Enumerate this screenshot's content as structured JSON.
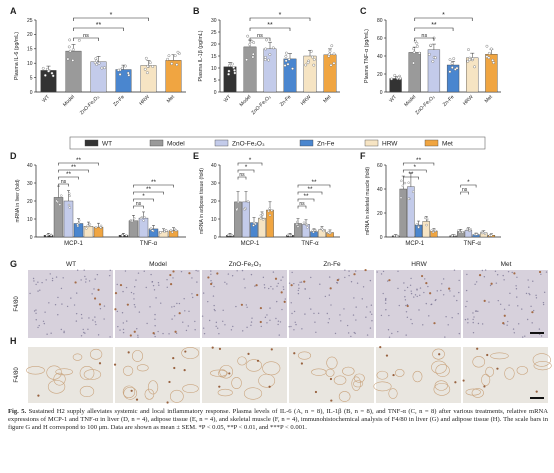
{
  "chart_data": [
    {
      "type": "bar",
      "panel": "A",
      "ylabel": "Plasma IL-6 (pg/mL)",
      "ylim": [
        0,
        25
      ],
      "yticks": [
        "0",
        "5",
        "10",
        "15",
        "20",
        "25"
      ],
      "categories": [
        "WT",
        "Model",
        "ZnO-Fe2O3",
        "Zn-Fe",
        "HRW",
        "Met"
      ],
      "values": [
        7.5,
        14.2,
        10.5,
        7.8,
        9.2,
        11.0
      ],
      "sig": [
        {
          "from": 1,
          "to": 4,
          "label": "*"
        },
        {
          "from": 1,
          "to": 3,
          "label": "**"
        },
        {
          "from": 1,
          "to": 2,
          "label": "ns"
        }
      ]
    },
    {
      "type": "bar",
      "panel": "B",
      "ylabel": "Plasma IL-1β (pg/mL)",
      "ylim": [
        0,
        30
      ],
      "yticks": [
        "0",
        "5",
        "10",
        "15",
        "20",
        "25",
        "30"
      ],
      "categories": [
        "WT",
        "Model",
        "ZnO-Fe2O3",
        "Zn-Fe",
        "HRW",
        "Met"
      ],
      "values": [
        10.5,
        18.8,
        18.0,
        13.8,
        15.0,
        15.5
      ],
      "sig": [
        {
          "from": 1,
          "to": 4,
          "label": "*"
        },
        {
          "from": 1,
          "to": 3,
          "label": "**"
        },
        {
          "from": 1,
          "to": 2,
          "label": "ns"
        }
      ]
    },
    {
      "type": "bar",
      "panel": "C",
      "ylabel": "Plasma TNF-α (pg/mL)",
      "ylim": [
        0,
        80
      ],
      "yticks": [
        "0",
        "20",
        "40",
        "60",
        "80"
      ],
      "categories": [
        "WT",
        "Model",
        "ZnO-Fe2O3",
        "Zn-Fe",
        "HRW",
        "Met"
      ],
      "values": [
        15.0,
        44.0,
        47.0,
        30.0,
        38.0,
        42.0
      ],
      "sig": [
        {
          "from": 1,
          "to": 4,
          "label": "*"
        },
        {
          "from": 1,
          "to": 3,
          "label": "**"
        },
        {
          "from": 1,
          "to": 2,
          "label": "ns"
        }
      ]
    },
    {
      "type": "grouped_bar",
      "panel": "D",
      "ylabel": "mRNA in liver (fold)",
      "ylim": [
        0,
        40
      ],
      "yticks": [
        "0",
        "10",
        "20",
        "30",
        "40"
      ],
      "groups": [
        "MCP-1",
        "TNF-α"
      ],
      "series": [
        {
          "name": "WT",
          "values": [
            1.0,
            1.0
          ]
        },
        {
          "name": "Model",
          "values": [
            22.0,
            9.0
          ]
        },
        {
          "name": "ZnO-Fe2O3",
          "values": [
            20.0,
            10.5
          ]
        },
        {
          "name": "Zn-Fe",
          "values": [
            7.5,
            4.5
          ]
        },
        {
          "name": "HRW",
          "values": [
            6.0,
            3.0
          ]
        },
        {
          "name": "Met",
          "values": [
            5.5,
            3.5
          ]
        }
      ],
      "sig": [
        {
          "group": 0,
          "from": 1,
          "to": 5,
          "label": "**"
        },
        {
          "group": 0,
          "from": 1,
          "to": 4,
          "label": "**"
        },
        {
          "group": 0,
          "from": 1,
          "to": 3,
          "label": "**"
        },
        {
          "group": 0,
          "from": 1,
          "to": 2,
          "label": "ns"
        },
        {
          "group": 1,
          "from": 1,
          "to": 5,
          "label": "**"
        },
        {
          "group": 1,
          "from": 1,
          "to": 4,
          "label": "**"
        },
        {
          "group": 1,
          "from": 1,
          "to": 3,
          "label": "*"
        },
        {
          "group": 1,
          "from": 1,
          "to": 2,
          "label": "ns"
        }
      ]
    },
    {
      "type": "grouped_bar",
      "panel": "E",
      "ylabel": "mRNA in adipose tissue (fold)",
      "ylim": [
        0,
        40
      ],
      "yticks": [
        "0",
        "10",
        "20",
        "30",
        "40"
      ],
      "groups": [
        "MCP-1",
        "TNF-α"
      ],
      "series": [
        {
          "name": "WT",
          "values": [
            1.0,
            1.0
          ]
        },
        {
          "name": "Model",
          "values": [
            19.5,
            7.5
          ]
        },
        {
          "name": "ZnO-Fe2O3",
          "values": [
            19.5,
            7.0
          ]
        },
        {
          "name": "Zn-Fe",
          "values": [
            8.0,
            3.0
          ]
        },
        {
          "name": "HRW",
          "values": [
            10.5,
            4.0
          ]
        },
        {
          "name": "Met",
          "values": [
            15.0,
            2.5
          ]
        }
      ],
      "sig": [
        {
          "group": 0,
          "from": 1,
          "to": 4,
          "label": "*"
        },
        {
          "group": 0,
          "from": 1,
          "to": 3,
          "label": "*"
        },
        {
          "group": 0,
          "from": 1,
          "to": 2,
          "label": "ns"
        },
        {
          "group": 1,
          "from": 1,
          "to": 5,
          "label": "**"
        },
        {
          "group": 1,
          "from": 1,
          "to": 4,
          "label": "**"
        },
        {
          "group": 1,
          "from": 1,
          "to": 3,
          "label": "**"
        },
        {
          "group": 1,
          "from": 1,
          "to": 2,
          "label": "ns"
        }
      ]
    },
    {
      "type": "grouped_bar",
      "panel": "F",
      "ylabel": "mRNA in skeletal muscle (fold)",
      "ylim": [
        0,
        60
      ],
      "yticks": [
        "0",
        "20",
        "40",
        "60"
      ],
      "groups": [
        "MCP-1",
        "TNF-α"
      ],
      "series": [
        {
          "name": "WT",
          "values": [
            1.0,
            1.0
          ]
        },
        {
          "name": "Model",
          "values": [
            40.0,
            4.5
          ]
        },
        {
          "name": "ZnO-Fe2O3",
          "values": [
            42.0,
            5.5
          ]
        },
        {
          "name": "Zn-Fe",
          "values": [
            10.0,
            2.0
          ]
        },
        {
          "name": "HRW",
          "values": [
            13.0,
            3.5
          ]
        },
        {
          "name": "Met",
          "values": [
            5.0,
            1.5
          ]
        }
      ],
      "sig": [
        {
          "group": 0,
          "from": 1,
          "to": 5,
          "label": "**"
        },
        {
          "group": 0,
          "from": 1,
          "to": 4,
          "label": "*"
        },
        {
          "group": 0,
          "from": 1,
          "to": 3,
          "label": "**"
        },
        {
          "group": 1,
          "from": 1,
          "to": 3,
          "label": "*"
        },
        {
          "group": 1,
          "from": 1,
          "to": 2,
          "label": "ns"
        }
      ]
    }
  ],
  "legend": [
    {
      "name": "WT",
      "color": "#333333"
    },
    {
      "name": "Model",
      "color": "#9a9a9a"
    },
    {
      "name": "ZnO-Fe2O3",
      "color": "#c3cbea"
    },
    {
      "name": "Zn-Fe",
      "color": "#4a86cf"
    },
    {
      "name": "HRW",
      "color": "#f6e4c3"
    },
    {
      "name": "Met",
      "color": "#f0a541"
    }
  ],
  "micro_columns": [
    "WT",
    "Model",
    "ZnO-Fe2O3",
    "Zn-Fe",
    "HRW",
    "Met"
  ],
  "micro_rows": [
    {
      "panel": "G",
      "label": "F4/80"
    },
    {
      "panel": "H",
      "label": "F4/80"
    }
  ],
  "caption": {
    "title": "Fig. 5.",
    "text": "Sustained H2 supply alleviates systemic and local inflammatory response. Plasma levels of IL-6 (A, n = 8), IL-1β (B, n = 8), and TNF-α (C, n = 8) after various treatments, relative mRNA expressions of MCP-1 and TNF-α in liver (D, n = 4), adipose tissue (E, n = 4), and skeletal muscle (F, n = 4), immunohistochemical analysis of F4/80 in liver (G) and adipose tissue (H). The scale bars in figure G and H correspond to 100 μm. Data are shown as mean ± SEM. *P < 0.05, **P < 0.01, and ***P < 0.001."
  }
}
